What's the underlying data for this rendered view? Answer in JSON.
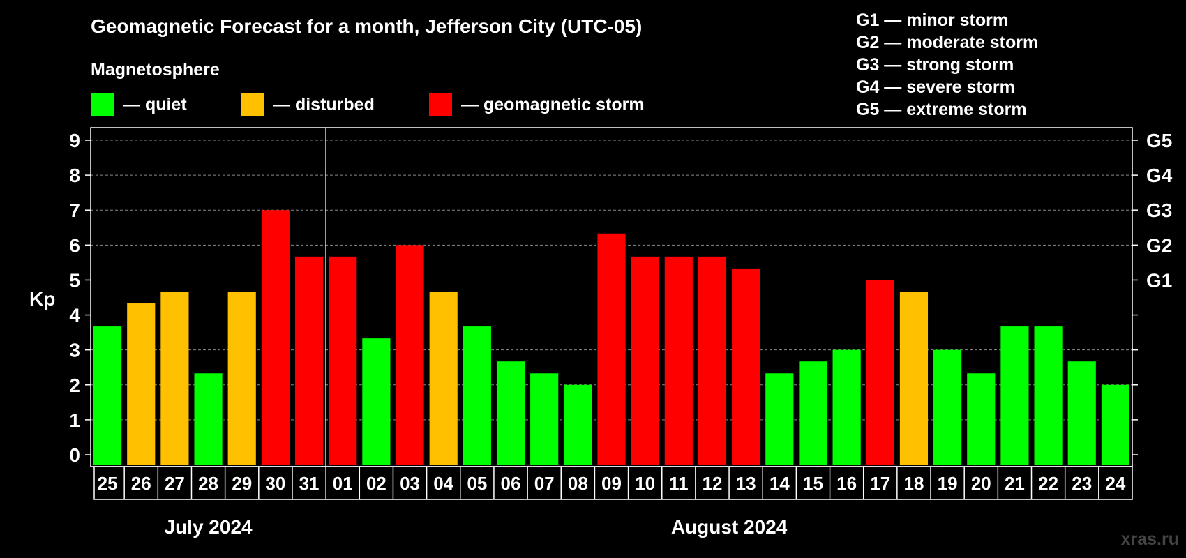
{
  "chart_data": {
    "type": "bar",
    "title": "Geomagnetic Forecast for a month, Jefferson City (UTC-05)",
    "legend": {
      "heading": "Magnetosphere",
      "items": [
        {
          "key": "quiet",
          "label": "— quiet",
          "color": "#00ff00"
        },
        {
          "key": "disturbed",
          "label": "— disturbed",
          "color": "#ffc000"
        },
        {
          "key": "storm",
          "label": "— geomagnetic storm",
          "color": "#ff0000"
        }
      ]
    },
    "storm_scale": [
      {
        "code": "G1",
        "label": "G1 — minor storm"
      },
      {
        "code": "G2",
        "label": "G2 — moderate storm"
      },
      {
        "code": "G3",
        "label": "G3 — strong storm"
      },
      {
        "code": "G4",
        "label": "G4 — severe storm"
      },
      {
        "code": "G5",
        "label": "G5 — extreme storm"
      }
    ],
    "ylabel": "Kp",
    "ylim": [
      0,
      9
    ],
    "yticks": [
      0,
      1,
      2,
      3,
      4,
      5,
      6,
      7,
      8,
      9
    ],
    "right_axis": [
      {
        "label": "G1",
        "kp": 5
      },
      {
        "label": "G2",
        "kp": 6
      },
      {
        "label": "G3",
        "kp": 7
      },
      {
        "label": "G4",
        "kp": 8
      },
      {
        "label": "G5",
        "kp": 9
      }
    ],
    "grid": true,
    "categories": [
      "25",
      "26",
      "27",
      "28",
      "29",
      "30",
      "31",
      "01",
      "02",
      "03",
      "04",
      "05",
      "06",
      "07",
      "08",
      "09",
      "10",
      "11",
      "12",
      "13",
      "14",
      "15",
      "16",
      "17",
      "18",
      "19",
      "20",
      "21",
      "22",
      "23",
      "24"
    ],
    "values": [
      3.67,
      4.33,
      4.67,
      2.33,
      4.67,
      7.0,
      5.67,
      5.67,
      3.33,
      6.0,
      4.67,
      3.67,
      2.67,
      2.33,
      2.0,
      6.33,
      5.67,
      5.67,
      5.67,
      5.33,
      2.33,
      2.67,
      3.0,
      5.0,
      4.67,
      3.0,
      2.33,
      3.67,
      3.67,
      2.67,
      2.0
    ],
    "status": [
      "quiet",
      "disturbed",
      "disturbed",
      "quiet",
      "disturbed",
      "storm",
      "storm",
      "storm",
      "quiet",
      "storm",
      "disturbed",
      "quiet",
      "quiet",
      "quiet",
      "quiet",
      "storm",
      "storm",
      "storm",
      "storm",
      "storm",
      "quiet",
      "quiet",
      "quiet",
      "storm",
      "disturbed",
      "quiet",
      "quiet",
      "quiet",
      "quiet",
      "quiet",
      "quiet"
    ],
    "months": [
      {
        "label": "July 2024",
        "start_index": 0,
        "end_index": 6
      },
      {
        "label": "August 2024",
        "start_index": 7,
        "end_index": 30
      }
    ],
    "month_divider_after_index": 6
  },
  "watermark": "xras.ru"
}
